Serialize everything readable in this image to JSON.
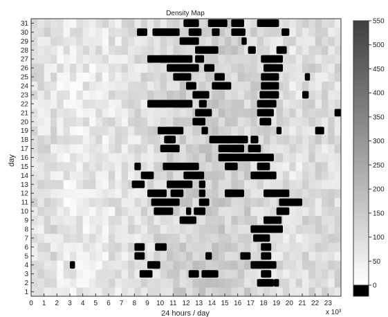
{
  "chart_data": {
    "type": "heatmap",
    "title": "Density Map",
    "xlabel": "24 hours / day",
    "ylabel": "day",
    "x_exponent": "x 10³",
    "x_ticks": [
      "0",
      "1",
      "2",
      "3",
      "4",
      "5",
      "6",
      "7",
      "8",
      "9",
      "10",
      "11",
      "12",
      "13",
      "14",
      "15",
      "16",
      "17",
      "18",
      "19",
      "20",
      "21",
      "22",
      "23"
    ],
    "y_ticks": [
      "1",
      "2",
      "3",
      "4",
      "5",
      "6",
      "7",
      "8",
      "9",
      "10",
      "11",
      "12",
      "13",
      "14",
      "15",
      "16",
      "17",
      "18",
      "19",
      "20",
      "21",
      "22",
      "23",
      "24",
      "25",
      "26",
      "27",
      "28",
      "29",
      "30",
      "31"
    ],
    "x_range": [
      0,
      24
    ],
    "y_range": [
      1,
      31
    ],
    "colorbar": {
      "ticks": [
        "0",
        "50",
        "100",
        "150",
        "200",
        "250",
        "300",
        "350",
        "400",
        "450",
        "500",
        "550"
      ],
      "range": [
        0,
        550
      ]
    },
    "dense_regions": [
      {
        "day": 31,
        "hours": [
          [
            11.8,
            13.0
          ],
          [
            13.7,
            15.2
          ],
          [
            15.5,
            16.5
          ],
          [
            17.5,
            19.2
          ]
        ]
      },
      {
        "day": 30,
        "hours": [
          [
            8.2,
            9.0
          ],
          [
            9.4,
            11.5
          ],
          [
            12.2,
            13.2
          ],
          [
            14.0,
            14.6
          ],
          [
            15.5,
            16.6
          ],
          [
            19.4,
            20.0
          ]
        ]
      },
      {
        "day": 29,
        "hours": [
          [
            11.5,
            13.0
          ],
          [
            16.3,
            16.7
          ]
        ]
      },
      {
        "day": 28,
        "hours": [
          [
            12.7,
            14.5
          ],
          [
            16.8,
            17.4
          ],
          [
            19.0,
            19.8
          ]
        ]
      },
      {
        "day": 27,
        "hours": [
          [
            9.0,
            12.5
          ],
          [
            12.7,
            13.4
          ],
          [
            17.8,
            19.5
          ]
        ]
      },
      {
        "day": 26,
        "hours": [
          [
            10.5,
            13.0
          ],
          [
            13.4,
            14.2
          ],
          [
            18.0,
            19.5
          ]
        ]
      },
      {
        "day": 25,
        "hours": [
          [
            11.0,
            12.4
          ],
          [
            14.2,
            15.0
          ],
          [
            17.8,
            19.2
          ],
          [
            21.2,
            21.6
          ]
        ]
      },
      {
        "day": 24,
        "hours": [
          [
            12.0,
            12.8
          ],
          [
            14.0,
            15.5
          ],
          [
            17.8,
            19.2
          ]
        ]
      },
      {
        "day": 23,
        "hours": [
          [
            12.5,
            13.8
          ],
          [
            17.7,
            19.2
          ],
          [
            21.0,
            21.5
          ]
        ]
      },
      {
        "day": 22,
        "hours": [
          [
            9.0,
            12.5
          ],
          [
            13.0,
            13.6
          ],
          [
            17.5,
            19.0
          ]
        ]
      },
      {
        "day": 21,
        "hours": [
          [
            12.7,
            14.0
          ],
          [
            17.5,
            18.8
          ],
          [
            23.5,
            24.0
          ]
        ]
      },
      {
        "day": 20,
        "hours": [
          [
            12.5,
            13.5
          ],
          [
            17.7,
            18.6
          ]
        ]
      },
      {
        "day": 19,
        "hours": [
          [
            9.8,
            11.8
          ],
          [
            13.2,
            13.7
          ],
          [
            19.0,
            19.4
          ],
          [
            22.0,
            22.7
          ]
        ]
      },
      {
        "day": 18,
        "hours": [
          [
            10.3,
            11.2
          ],
          [
            13.8,
            16.8
          ],
          [
            17.0,
            17.6
          ]
        ]
      },
      {
        "day": 17,
        "hours": [
          [
            10.0,
            11.5
          ],
          [
            14.5,
            16.5
          ],
          [
            16.8,
            17.8
          ]
        ]
      },
      {
        "day": 16,
        "hours": [
          [
            14.5,
            18.8
          ]
        ]
      },
      {
        "day": 15,
        "hours": [
          [
            8.0,
            8.5
          ],
          [
            10.2,
            13.0
          ],
          [
            15.0,
            16.0
          ],
          [
            17.5,
            18.5
          ]
        ]
      },
      {
        "day": 14,
        "hours": [
          [
            8.5,
            9.5
          ],
          [
            11.8,
            13.4
          ],
          [
            17.0,
            19.0
          ]
        ]
      },
      {
        "day": 13,
        "hours": [
          [
            7.8,
            8.8
          ],
          [
            10.5,
            12.5
          ],
          [
            13.0,
            13.5
          ]
        ]
      },
      {
        "day": 12,
        "hours": [
          [
            9.0,
            10.5
          ],
          [
            10.8,
            11.8
          ],
          [
            13.0,
            13.5
          ],
          [
            15.0,
            16.5
          ],
          [
            18.0,
            20.0
          ]
        ]
      },
      {
        "day": 11,
        "hours": [
          [
            9.3,
            11.5
          ],
          [
            13.0,
            13.8
          ],
          [
            19.2,
            21.0
          ]
        ]
      },
      {
        "day": 10,
        "hours": [
          [
            9.5,
            11.0
          ],
          [
            12.0,
            12.4
          ],
          [
            12.6,
            13.5
          ],
          [
            19.0,
            20.0
          ]
        ]
      },
      {
        "day": 9,
        "hours": [
          [
            11.5,
            12.8
          ],
          [
            18.0,
            19.4
          ]
        ]
      },
      {
        "day": 8,
        "hours": [
          [
            17.0,
            19.5
          ]
        ]
      },
      {
        "day": 7,
        "hours": [
          [
            17.2,
            18.5
          ]
        ]
      },
      {
        "day": 6,
        "hours": [
          [
            8.0,
            8.8
          ],
          [
            9.6,
            10.5
          ],
          [
            17.8,
            18.6
          ]
        ]
      },
      {
        "day": 5,
        "hours": [
          [
            8.0,
            8.8
          ],
          [
            13.5,
            14.0
          ],
          [
            16.2,
            17.0
          ],
          [
            17.8,
            18.6
          ]
        ]
      },
      {
        "day": 4,
        "hours": [
          [
            3.0,
            3.4
          ],
          [
            9.0,
            10.0
          ],
          [
            17.0,
            19.0
          ]
        ]
      },
      {
        "day": 3,
        "hours": [
          [
            8.4,
            9.4
          ],
          [
            12.2,
            13.0
          ],
          [
            13.2,
            14.5
          ],
          [
            17.8,
            18.6
          ]
        ]
      },
      {
        "day": 2,
        "hours": [
          [
            17.5,
            18.8
          ],
          [
            18.8,
            19.2
          ]
        ]
      }
    ]
  }
}
